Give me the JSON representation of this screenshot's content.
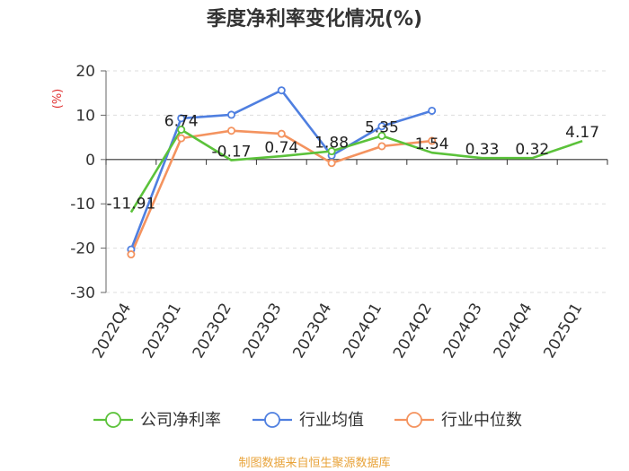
{
  "chart_data": {
    "type": "line",
    "title": "季度净利率变化情况(%)",
    "ylabel": "(%)",
    "ylim": [
      -30,
      20
    ],
    "yticks": [
      20,
      10,
      0,
      -10,
      -20,
      -30
    ],
    "grid": "horizontal dashed",
    "legend_position": "bottom",
    "categories": [
      "2022Q4",
      "2023Q1",
      "2023Q2",
      "2023Q3",
      "2023Q4",
      "2024Q1",
      "2024Q2",
      "2024Q3",
      "2024Q4",
      "2025Q1"
    ],
    "series": [
      {
        "name": "公司净利率",
        "color": "#5bc23a",
        "values": [
          -11.91,
          6.74,
          -0.17,
          0.74,
          1.88,
          5.35,
          1.54,
          0.33,
          0.32,
          4.17
        ],
        "labels": [
          "-11.91",
          "6.74",
          "-0.17",
          "0.74",
          "1.88",
          "5.35",
          "1.54",
          "0.33",
          "0.32",
          "4.17"
        ],
        "markers": [
          false,
          true,
          false,
          false,
          true,
          true,
          false,
          false,
          false,
          false
        ]
      },
      {
        "name": "行业均值",
        "color": "#4f7fe0",
        "values": [
          -20.3,
          9.3,
          10.1,
          15.6,
          0.9,
          7.5,
          11.0,
          null,
          null,
          null
        ],
        "markers": [
          true,
          true,
          true,
          true,
          true,
          true,
          true,
          false,
          false,
          false
        ]
      },
      {
        "name": "行业中位数",
        "color": "#f4935f",
        "values": [
          -21.4,
          4.8,
          6.5,
          5.8,
          -0.8,
          3.0,
          4.2,
          null,
          null,
          null
        ],
        "markers": [
          true,
          true,
          true,
          true,
          true,
          true,
          true,
          false,
          false,
          false
        ]
      }
    ],
    "source": "制图数据来自恒生聚源数据库",
    "ylabel_color": "#e03030",
    "source_color": "#e8a33a"
  }
}
